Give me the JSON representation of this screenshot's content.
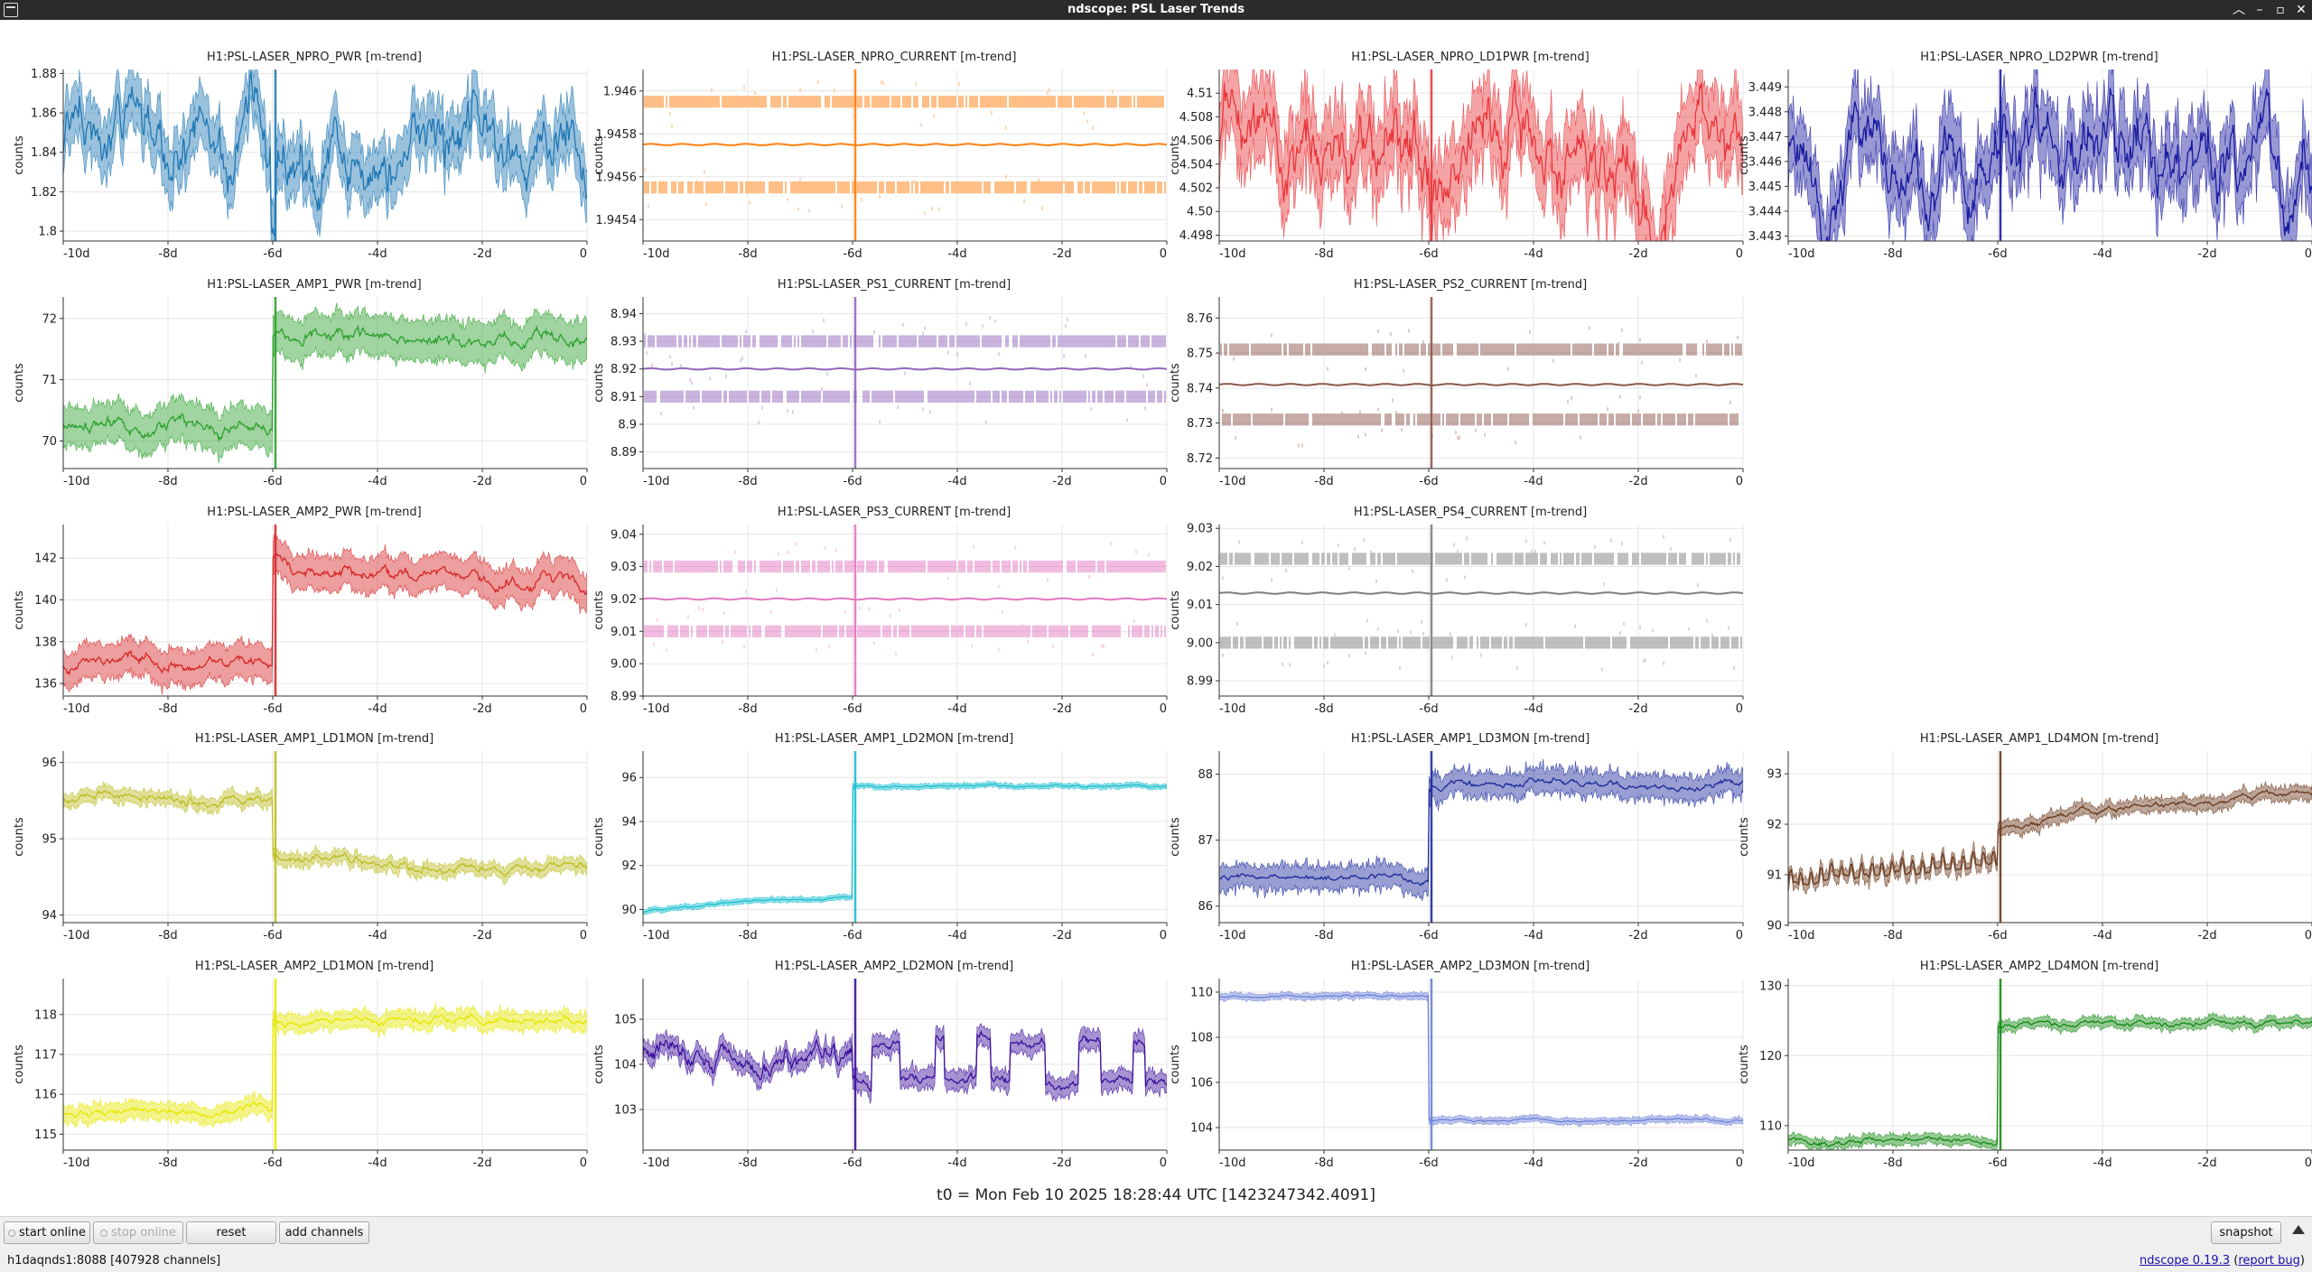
{
  "window": {
    "title": "ndscope: PSL Laser Trends"
  },
  "time_base": "t0 = Mon Feb 10 2025 18:28:44 UTC [1423247342.4091]",
  "ylabel": "counts",
  "xticks": [
    "-10d",
    "-8d",
    "-6d",
    "-4d",
    "-2d",
    "0"
  ],
  "event_day": -6,
  "plots": [
    {
      "row": 0,
      "col": 0,
      "title": "H1:PSL-LASER_NPRO_PWR [m-trend]",
      "color": "#1f77b4",
      "ylim": [
        1.795,
        1.882
      ],
      "yticks": [
        "1.8",
        "1.82",
        "1.84",
        "1.86",
        "1.88"
      ],
      "ytick_values": [
        1.8,
        1.82,
        1.84,
        1.86,
        1.88
      ],
      "style": "wander",
      "mean": 1.843,
      "spread": 0.012,
      "amp": 0.018,
      "noise": 0.004
    },
    {
      "row": 0,
      "col": 1,
      "title": "H1:PSL-LASER_NPRO_CURRENT [m-trend]",
      "color": "#ff7f0e",
      "ylim": [
        1.9453,
        1.9461
      ],
      "yticks": [
        "1.9454",
        "1.9456",
        "1.9458",
        "1.946"
      ],
      "ytick_values": [
        1.9454,
        1.9456,
        1.9458,
        1.946
      ],
      "style": "band",
      "mean": 1.94575,
      "bands": [
        1.94595,
        1.94555
      ]
    },
    {
      "row": 0,
      "col": 2,
      "title": "H1:PSL-LASER_NPRO_LD1PWR [m-trend]",
      "color": "#e8363a",
      "ylim": [
        4.4975,
        4.512
      ],
      "yticks": [
        "4.498",
        "4.50",
        "4.502",
        "4.504",
        "4.506",
        "4.508",
        "4.51"
      ],
      "ytick_values": [
        4.498,
        4.5,
        4.502,
        4.504,
        4.506,
        4.508,
        4.51
      ],
      "style": "noisy",
      "mean": 4.5045,
      "spread": 0.002,
      "amp": 0.0035,
      "noise": 0.0025
    },
    {
      "row": 0,
      "col": 3,
      "title": "H1:PSL-LASER_NPRO_LD2PWR [m-trend]",
      "color": "#1a1aa0",
      "ylim": [
        3.4428,
        3.4497
      ],
      "yticks": [
        "3.443",
        "3.444",
        "3.445",
        "3.446",
        "3.447",
        "3.448",
        "3.449"
      ],
      "ytick_values": [
        3.443,
        3.444,
        3.445,
        3.446,
        3.447,
        3.448,
        3.449
      ],
      "style": "noisy",
      "mean": 3.4462,
      "spread": 0.0008,
      "amp": 0.0016,
      "noise": 0.0012
    },
    {
      "row": 1,
      "col": 0,
      "title": "H1:PSL-LASER_AMP1_PWR [m-trend]",
      "color": "#2ca02c",
      "ylim": [
        69.55,
        72.35
      ],
      "yticks": [
        "70",
        "71",
        "72"
      ],
      "ytick_values": [
        70,
        71,
        72
      ],
      "style": "step",
      "pre": 70.2,
      "post": 71.7,
      "spread": 0.28,
      "amp": 0.12,
      "noise": 0.12
    },
    {
      "row": 1,
      "col": 1,
      "title": "H1:PSL-LASER_PS1_CURRENT [m-trend]",
      "color": "#9467bd",
      "ylim": [
        8.884,
        8.946
      ],
      "yticks": [
        "8.89",
        "8.9",
        "8.91",
        "8.92",
        "8.93",
        "8.94"
      ],
      "ytick_values": [
        8.89,
        8.9,
        8.91,
        8.92,
        8.93,
        8.94
      ],
      "style": "band",
      "mean": 8.92,
      "bands": [
        8.93,
        8.91
      ]
    },
    {
      "row": 1,
      "col": 2,
      "title": "H1:PSL-LASER_PS2_CURRENT [m-trend]",
      "color": "#8c564b",
      "ylim": [
        8.717,
        8.766
      ],
      "yticks": [
        "8.72",
        "8.73",
        "8.74",
        "8.75",
        "8.76"
      ],
      "ytick_values": [
        8.72,
        8.73,
        8.74,
        8.75,
        8.76
      ],
      "style": "band",
      "mean": 8.741,
      "bands": [
        8.751,
        8.731
      ]
    },
    {
      "row": 2,
      "col": 0,
      "title": "H1:PSL-LASER_AMP2_PWR [m-trend]",
      "color": "#d62728",
      "ylim": [
        135.4,
        143.6
      ],
      "yticks": [
        "136",
        "138",
        "140",
        "142"
      ],
      "ytick_values": [
        136,
        138,
        140,
        142
      ],
      "style": "step",
      "pre": 137.0,
      "post": 141.0,
      "spread": 0.7,
      "amp": 0.3,
      "noise": 0.3,
      "overshoot": 1.2
    },
    {
      "row": 2,
      "col": 1,
      "title": "H1:PSL-LASER_PS3_CURRENT [m-trend]",
      "color": "#e377c2",
      "ylim": [
        8.99,
        9.043
      ],
      "yticks": [
        "8.99",
        "9.00",
        "9.01",
        "9.02",
        "9.03",
        "9.04"
      ],
      "ytick_values": [
        8.99,
        9.0,
        9.01,
        9.02,
        9.03,
        9.04
      ],
      "style": "band",
      "mean": 9.02,
      "bands": [
        9.03,
        9.01
      ]
    },
    {
      "row": 2,
      "col": 2,
      "title": "H1:PSL-LASER_PS4_CURRENT [m-trend]",
      "color": "#7f7f7f",
      "ylim": [
        8.986,
        9.031
      ],
      "yticks": [
        "8.99",
        "9.00",
        "9.01",
        "9.02",
        "9.03"
      ],
      "ytick_values": [
        8.99,
        9.0,
        9.01,
        9.02,
        9.03
      ],
      "style": "band",
      "mean": 9.013,
      "bands": [
        9.022,
        9.0
      ]
    },
    {
      "row": 3,
      "col": 0,
      "title": "H1:PSL-LASER_AMP1_LD1MON [m-trend]",
      "color": "#bcbd22",
      "ylim": [
        93.9,
        96.15
      ],
      "yticks": [
        "94",
        "95",
        "96"
      ],
      "ytick_values": [
        94,
        95,
        96
      ],
      "style": "step",
      "pre": 95.5,
      "post": 94.75,
      "spread": 0.06,
      "amp": 0.06,
      "noise": 0.06,
      "drift": -0.15
    },
    {
      "row": 3,
      "col": 1,
      "title": "H1:PSL-LASER_AMP1_LD2MON [m-trend]",
      "color": "#17becf",
      "ylim": [
        89.4,
        97.2
      ],
      "yticks": [
        "90",
        "92",
        "94",
        "96"
      ],
      "ytick_values": [
        90,
        92,
        94,
        96
      ],
      "style": "step",
      "pre": 90.6,
      "post": 95.6,
      "spread": 0.08,
      "amp": 0.05,
      "noise": 0.08,
      "rise": true
    },
    {
      "row": 3,
      "col": 2,
      "title": "H1:PSL-LASER_AMP1_LD3MON [m-trend]",
      "color": "#1c2a9c",
      "ylim": [
        85.75,
        88.35
      ],
      "yticks": [
        "86",
        "87",
        "88"
      ],
      "ytick_values": [
        86,
        87,
        88
      ],
      "style": "step",
      "pre": 86.45,
      "post": 87.85,
      "spread": 0.12,
      "amp": 0.05,
      "noise": 0.15
    },
    {
      "row": 3,
      "col": 3,
      "title": "H1:PSL-LASER_AMP1_LD4MON [m-trend]",
      "color": "#6b3a1c",
      "ylim": [
        90.05,
        93.45
      ],
      "yticks": [
        "90",
        "91",
        "92",
        "93"
      ],
      "ytick_values": [
        90,
        91,
        92,
        93
      ],
      "style": "step",
      "pre": 91.0,
      "post": 91.9,
      "spread": 0.08,
      "amp": 0.06,
      "noise": 0.12,
      "drift": 0.5,
      "ramp": true
    },
    {
      "row": 4,
      "col": 0,
      "title": "H1:PSL-LASER_AMP2_LD1MON [m-trend]",
      "color": "#e6e600",
      "ylim": [
        114.6,
        118.9
      ],
      "yticks": [
        "115",
        "116",
        "117",
        "118"
      ],
      "ytick_values": [
        115,
        116,
        117,
        118
      ],
      "style": "step",
      "pre": 115.6,
      "post": 117.85,
      "spread": 0.15,
      "amp": 0.1,
      "noise": 0.15
    },
    {
      "row": 4,
      "col": 1,
      "title": "H1:PSL-LASER_AMP2_LD2MON [m-trend]",
      "color": "#3b0f9c",
      "ylim": [
        102.1,
        105.9
      ],
      "yticks": [
        "103",
        "104",
        "105"
      ],
      "ytick_values": [
        103,
        104,
        105
      ],
      "style": "toggle",
      "pre": 104.2,
      "levels": [
        103.6,
        104.5
      ],
      "spread": 0.15,
      "noise": 0.15
    },
    {
      "row": 4,
      "col": 2,
      "title": "H1:PSL-LASER_AMP2_LD3MON [m-trend]",
      "color": "#6b7fd7",
      "ylim": [
        103.0,
        110.6
      ],
      "yticks": [
        "104",
        "106",
        "108",
        "110"
      ],
      "ytick_values": [
        104,
        106,
        108,
        110
      ],
      "style": "step",
      "pre": 109.8,
      "post": 104.3,
      "spread": 0.1,
      "amp": 0.05,
      "noise": 0.1
    },
    {
      "row": 4,
      "col": 3,
      "title": "H1:PSL-LASER_AMP2_LD4MON [m-trend]",
      "color": "#138a13",
      "ylim": [
        106.5,
        131.0
      ],
      "yticks": [
        "110",
        "120",
        "130"
      ],
      "ytick_values": [
        110,
        120,
        130
      ],
      "style": "step",
      "pre": 108.0,
      "post": 124.6,
      "spread": 0.5,
      "amp": 0.4,
      "noise": 0.5
    }
  ],
  "controls": {
    "start_online": "start online",
    "stop_online": "stop online",
    "reset": "reset",
    "add_channels": "add channels",
    "snapshot": "snapshot"
  },
  "status": {
    "server": "h1daqnds1:8088  [407928 channels]",
    "version": "ndscope 0.19.3",
    "report_bug": "report bug"
  }
}
